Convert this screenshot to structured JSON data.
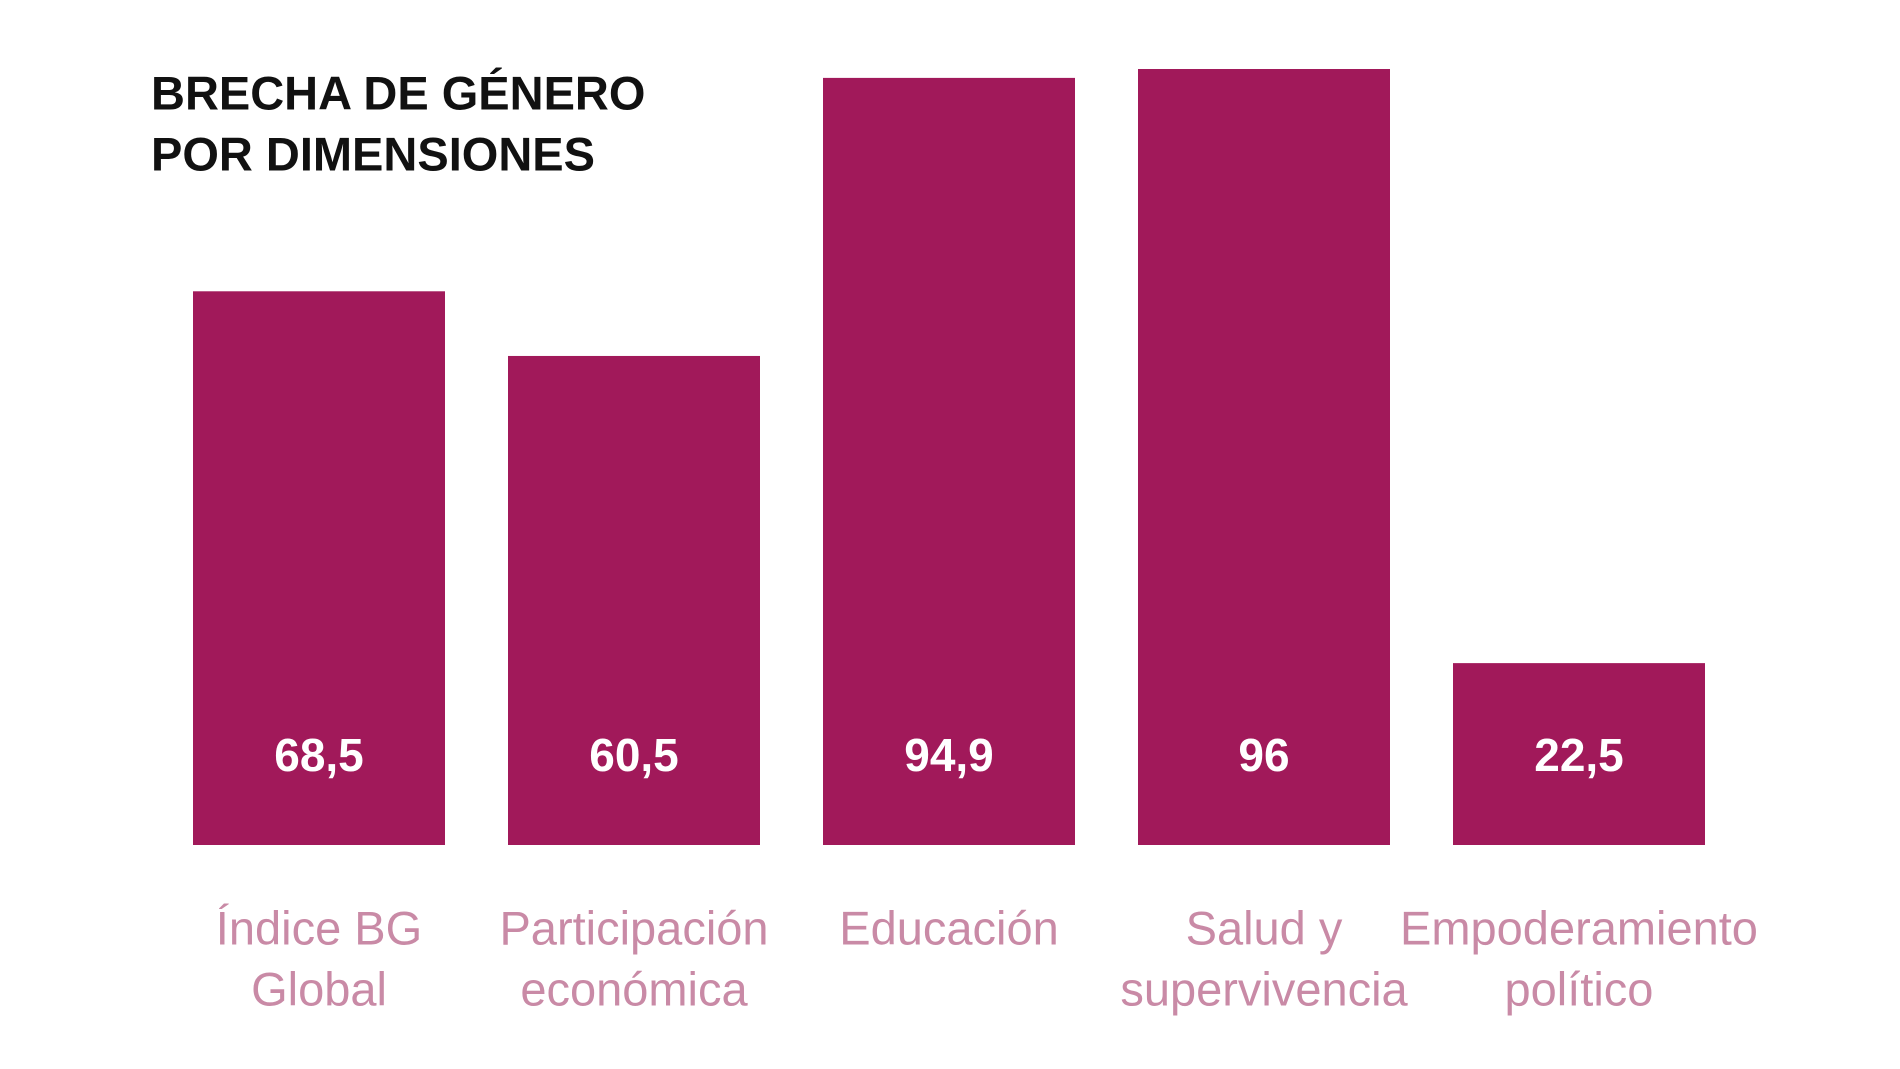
{
  "chart_data": {
    "type": "bar",
    "title": [
      "BRECHA DE GÉNERO",
      "POR DIMENSIONES"
    ],
    "categories": [
      [
        "Índice BG",
        "Global"
      ],
      [
        "Participación",
        "económica"
      ],
      [
        "Educación"
      ],
      [
        "Salud y",
        "supervivencia"
      ],
      [
        "Empoderamiento",
        "político"
      ]
    ],
    "values": [
      68.5,
      60.5,
      94.9,
      96,
      22.5
    ],
    "value_labels": [
      "68,5",
      "60,5",
      "94,9",
      "96",
      "22,5"
    ],
    "color": "#a1195a"
  }
}
